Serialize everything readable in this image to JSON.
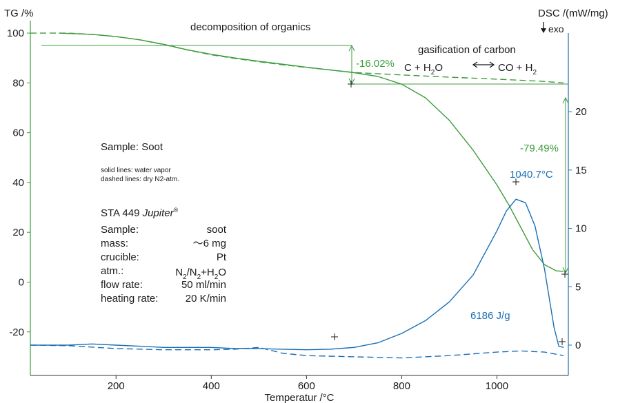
{
  "chart_data": {
    "type": "line",
    "title": "",
    "xlabel": "Temperatur /°C",
    "ylabel_left": "TG /%",
    "ylabel_right": "DSC /(mW/mg)",
    "exo_label": "exo",
    "xlim": [
      20,
      1150
    ],
    "ylim_left": [
      -37.5,
      105
    ],
    "ylim_right": [
      -2.6,
      27.8
    ],
    "x_ticks": [
      200,
      400,
      600,
      800,
      1000
    ],
    "y_left_ticks": [
      100,
      80,
      60,
      40,
      20,
      0,
      -20
    ],
    "y_right_ticks": [
      20,
      15,
      10,
      5,
      0
    ],
    "colors": {
      "tg": "#3c9b3c",
      "dsc": "#1a6fb5",
      "axis_left": "#3c9b3c",
      "axis_right": "#1a6fb5",
      "text": "#1a1a1a"
    },
    "series": [
      {
        "name": "TG water vapor",
        "axis": "left",
        "style": "solid",
        "color": "#3c9b3c",
        "x": [
          80,
          150,
          200,
          250,
          300,
          350,
          400,
          450,
          500,
          550,
          600,
          650,
          700,
          750,
          800,
          850,
          900,
          950,
          1000,
          1025,
          1050,
          1075,
          1100,
          1125,
          1140
        ],
        "y": [
          100,
          99.5,
          98.6,
          97.3,
          95.5,
          93.3,
          91.5,
          90,
          88.7,
          87.5,
          86.3,
          85.2,
          84.1,
          82.6,
          79.5,
          74,
          65,
          53,
          39,
          31,
          22,
          13,
          7,
          4.5,
          4.3
        ]
      },
      {
        "name": "TG dry N2-atm.",
        "axis": "left",
        "style": "dashed",
        "color": "#3c9b3c",
        "x": [
          20,
          100,
          150,
          200,
          250,
          300,
          350,
          400,
          450,
          500,
          550,
          600,
          650,
          700,
          800,
          900,
          1000,
          1100,
          1140
        ],
        "y": [
          100,
          100,
          99.5,
          98.6,
          97.3,
          95.4,
          93.2,
          91.3,
          89.8,
          88.5,
          87.3,
          86.2,
          85.2,
          84.2,
          83.2,
          82.3,
          81.5,
          80.6,
          80
        ]
      },
      {
        "name": "DSC water vapor",
        "axis": "right",
        "style": "solid",
        "color": "#1a6fb5",
        "x": [
          20,
          100,
          150,
          200,
          250,
          300,
          350,
          400,
          450,
          500,
          550,
          600,
          650,
          700,
          750,
          800,
          850,
          900,
          950,
          1000,
          1020,
          1040,
          1060,
          1080,
          1100,
          1110,
          1120,
          1130,
          1140
        ],
        "y": [
          0,
          0,
          0.1,
          0,
          -0.1,
          -0.2,
          -0.2,
          -0.2,
          -0.3,
          -0.3,
          -0.35,
          -0.4,
          -0.35,
          -0.2,
          0.2,
          1,
          2.1,
          3.7,
          6,
          9.8,
          11.5,
          12.5,
          12.2,
          10.2,
          6.5,
          4,
          1.5,
          -0.1,
          -0.2
        ]
      },
      {
        "name": "DSC dry N2-atm.",
        "axis": "right",
        "style": "dashed",
        "color": "#1a6fb5",
        "x": [
          20,
          100,
          200,
          300,
          400,
          450,
          500,
          550,
          600,
          700,
          800,
          900,
          1000,
          1050,
          1100,
          1140
        ],
        "y": [
          0,
          -0.05,
          -0.3,
          -0.4,
          -0.4,
          -0.35,
          -0.2,
          -0.7,
          -0.9,
          -1,
          -1.1,
          -0.9,
          -0.6,
          -0.5,
          -0.6,
          -0.9
        ]
      }
    ],
    "annotations": {
      "decomposition": "decomposition of organics",
      "gasification": "gasification of carbon",
      "reaction": {
        "lhs": "C + H",
        "sub1": "2",
        "o": "O",
        "rhs": "CO + H",
        "sub2": "2"
      },
      "step1": "-16.02%",
      "step2": "-79.49%",
      "peak": "1040.7°C",
      "area": "6186 J/g",
      "sample": "Sample: Soot",
      "legend_solid": "solid lines: water vapor",
      "legend_dashed": "dashed lines: dry N2-atm.",
      "instrument": "STA 449 ",
      "instrument_model": "Jupiter",
      "reg": "®",
      "params": [
        {
          "label": "Sample:",
          "value": "soot"
        },
        {
          "label": "mass:",
          "value": "～6 mg"
        },
        {
          "label": "crucible:",
          "value": "Pt"
        },
        {
          "label": "atm.:",
          "value": ""
        },
        {
          "label": "flow rate:",
          "value": "50 ml/min"
        },
        {
          "label": "heating rate:",
          "value": "20 K/min"
        }
      ],
      "atm_value": {
        "n1": "N",
        "s1": "2",
        "slash": "/N",
        "s2": "2",
        "plus": "+H",
        "s3": "2",
        "o": "O"
      }
    }
  }
}
